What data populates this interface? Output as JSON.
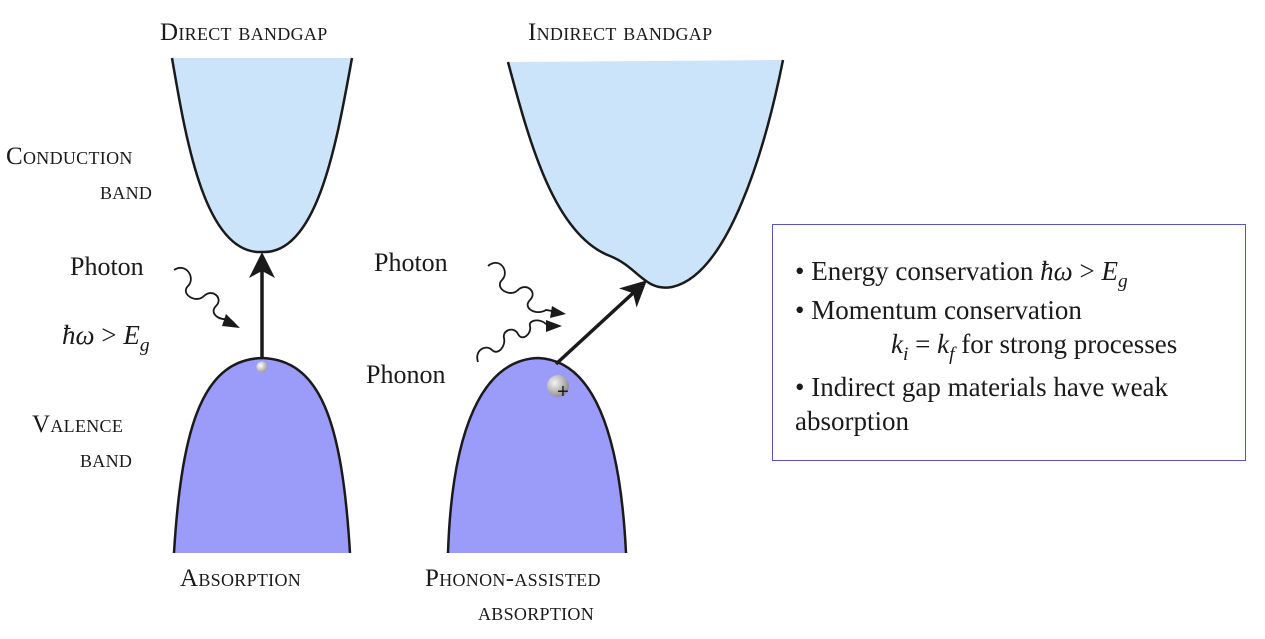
{
  "titles": {
    "direct": "Direct bandgap",
    "indirect": "Indirect bandgap"
  },
  "band_labels": {
    "conduction_line1": "Conduction",
    "conduction_line2": "band",
    "valence_line1": "Valence",
    "valence_line2": "band"
  },
  "left": {
    "photon": "Photon",
    "condition_hbar": "ħω",
    "condition_gt": " > ",
    "condition_E": "E",
    "condition_sub": "g",
    "caption": "Absorption"
  },
  "right": {
    "photon": "Photon",
    "phonon": "Phonon",
    "hole_sign": "+",
    "caption_line1": "Phonon-assisted",
    "caption_line2": "absorption"
  },
  "notes": {
    "bullet": "•",
    "energy_text": "Energy conservation ",
    "energy_hbar": "ħω",
    "energy_gt": " > ",
    "energy_E": "E",
    "energy_sub": "g",
    "momentum_text": "Momentum conservation",
    "k_i": "k",
    "k_i_sub": "i",
    "k_eq": " = ",
    "k_f": "k",
    "k_f_sub": "f",
    "k_tail": " for strong processes",
    "indirect_text": "Indirect gap materials have weak absorption"
  },
  "colors": {
    "conduction_fill": "#cce4fa",
    "valence_fill": "#9b9bfa",
    "outline": "#1a1a1a",
    "box_border": "#5555bb"
  }
}
